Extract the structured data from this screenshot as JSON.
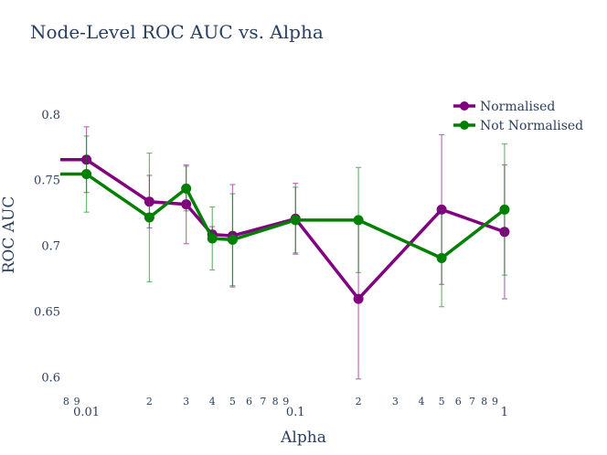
{
  "chart_data": {
    "type": "line",
    "title": "Node-Level ROC AUC vs. Alpha",
    "xlabel": "Alpha",
    "ylabel": "ROC AUC",
    "x_scale": "log",
    "xlim": [
      0.0075,
      1.3
    ],
    "ylim": [
      0.587,
      0.818
    ],
    "y_ticks": [
      0.6,
      0.65,
      0.7,
      0.75,
      0.8
    ],
    "y_tick_labels": [
      "0.6",
      "0.65",
      "0.7",
      "0.75",
      "0.8"
    ],
    "x_major_ticks": [
      0.01,
      0.1,
      1
    ],
    "x_major_labels": [
      "0.01",
      "0.1",
      "1"
    ],
    "x_minor_ticks": [
      0.008,
      0.009,
      0.02,
      0.03,
      0.04,
      0.05,
      0.06,
      0.07,
      0.08,
      0.09,
      0.2,
      0.3,
      0.4,
      0.5,
      0.6,
      0.7,
      0.8,
      0.9
    ],
    "x_minor_labels": [
      "8",
      "9",
      "2",
      "3",
      "4",
      "5",
      "6",
      "7",
      "8",
      "9",
      "2",
      "3",
      "4",
      "5",
      "6",
      "7",
      "8",
      "9"
    ],
    "legend_position": "top-right",
    "grid": false,
    "series": [
      {
        "name": "Normalised",
        "color": "#800080",
        "x": [
          0.0075,
          0.01,
          0.02,
          0.03,
          0.04,
          0.05,
          0.1,
          0.2,
          0.5,
          1
        ],
        "y": [
          0.766,
          0.766,
          0.734,
          0.732,
          0.709,
          0.708,
          0.721,
          0.66,
          0.728,
          0.711
        ],
        "err": [
          null,
          0.025,
          0.02,
          0.03,
          0.006,
          0.039,
          0.027,
          0.061,
          0.057,
          0.051
        ]
      },
      {
        "name": "Not Normalised",
        "color": "#008000",
        "x": [
          0.0075,
          0.01,
          0.02,
          0.03,
          0.04,
          0.05,
          0.1,
          0.2,
          0.5,
          1
        ],
        "y": [
          0.755,
          0.755,
          0.722,
          0.744,
          0.706,
          0.705,
          0.72,
          0.72,
          0.691,
          0.728
        ],
        "err": [
          null,
          0.029,
          0.049,
          0.017,
          0.024,
          0.035,
          0.025,
          0.04,
          0.037,
          0.05
        ]
      }
    ]
  }
}
